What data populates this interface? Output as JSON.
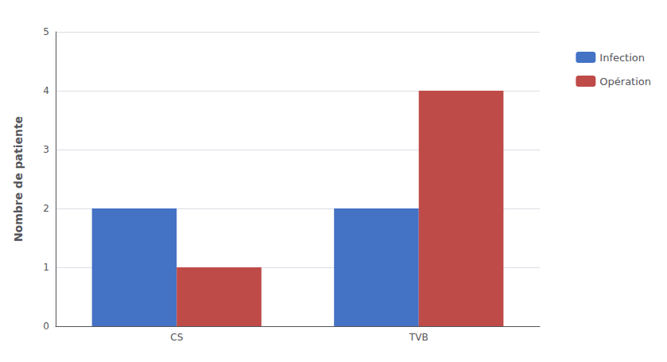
{
  "chart_data": {
    "type": "bar",
    "categories": [
      "CS",
      "TVB"
    ],
    "series": [
      {
        "name": "Infection",
        "color": "#4472C4",
        "values": [
          2,
          2
        ]
      },
      {
        "name": "Opération",
        "color": "#BE4B48",
        "values": [
          1,
          4
        ]
      }
    ],
    "ylabel": "Nombre de patiente",
    "ylim": [
      0,
      5
    ],
    "yticks": [
      0,
      1,
      2,
      3,
      4,
      5
    ],
    "grid": true,
    "legend": "right"
  }
}
